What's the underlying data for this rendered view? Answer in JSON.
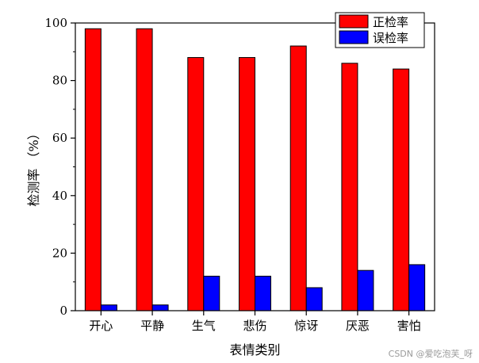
{
  "chart_data": {
    "type": "bar",
    "title": "",
    "xlabel": "表情类别",
    "ylabel": "检测率 （%）",
    "categories": [
      "开心",
      "平静",
      "生气",
      "悲伤",
      "惊讶",
      "厌恶",
      "害怕"
    ],
    "series": [
      {
        "name": "正检率",
        "color": "#ff0000",
        "values": [
          98,
          98,
          88,
          88,
          92,
          86,
          84
        ]
      },
      {
        "name": "误检率",
        "color": "#0000ff",
        "values": [
          2,
          2,
          12,
          12,
          8,
          14,
          16
        ]
      }
    ],
    "ylim": [
      0,
      100
    ],
    "yticks": [
      0,
      20,
      40,
      60,
      80,
      100
    ],
    "grid": false,
    "legend_position": "top-right"
  },
  "watermark": "CSDN @爱吃泡芙_呀"
}
